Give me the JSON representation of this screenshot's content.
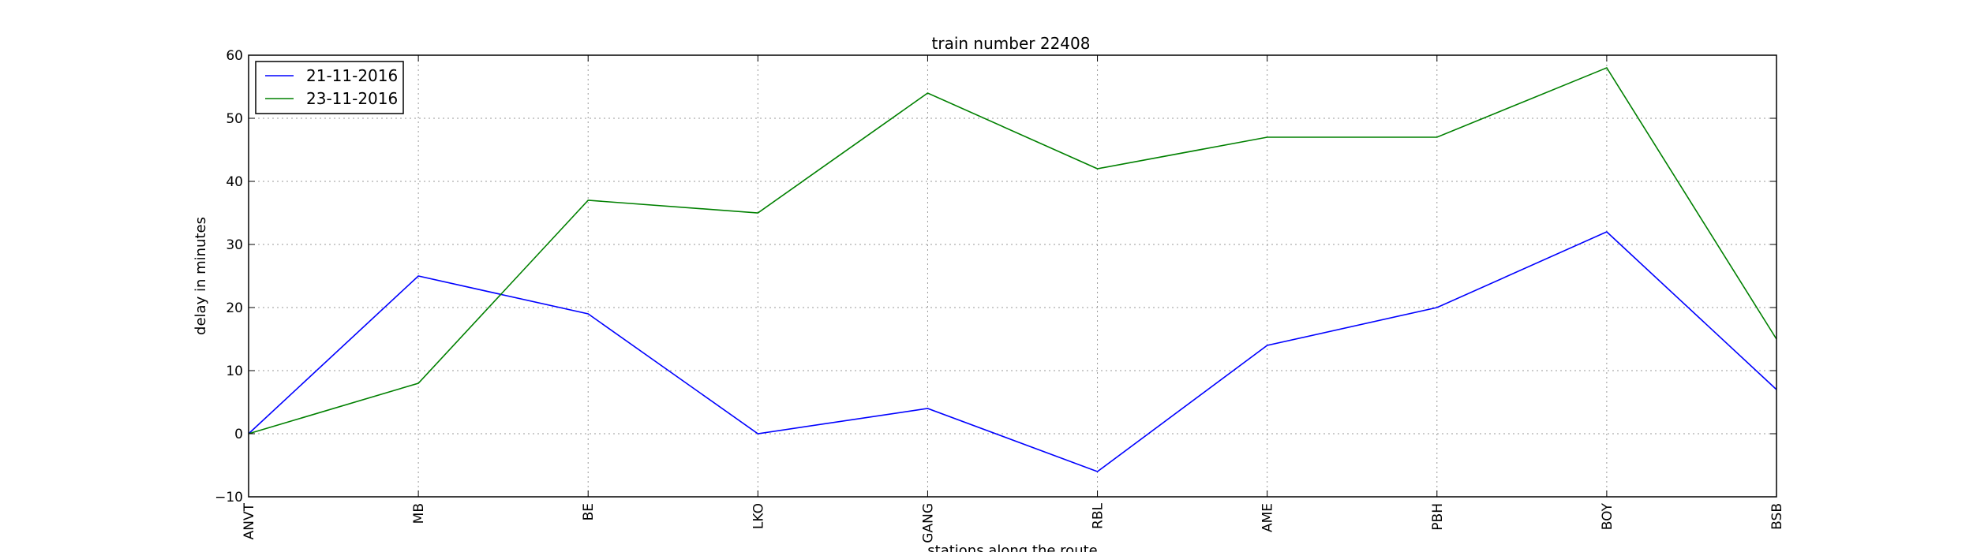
{
  "chart_data": {
    "type": "line",
    "title": "train number 22408",
    "xlabel": "stations along the route",
    "ylabel": "delay in minutes",
    "categories": [
      "ANVT",
      "MB",
      "BE",
      "LKO",
      "GANG",
      "RBL",
      "AME",
      "PBH",
      "BOY",
      "BSB"
    ],
    "ylim": [
      -10,
      60
    ],
    "yticks": [
      -10,
      0,
      10,
      20,
      30,
      40,
      50,
      60
    ],
    "grid": true,
    "legend_position": "top-left",
    "series": [
      {
        "name": "21-11-2016",
        "color": "#0000ff",
        "values": [
          0,
          25,
          19,
          0,
          4,
          -6,
          14,
          20,
          32,
          7
        ]
      },
      {
        "name": "23-11-2016",
        "color": "#008000",
        "values": [
          0,
          8,
          37,
          35,
          54,
          42,
          47,
          47,
          58,
          15
        ]
      }
    ]
  }
}
